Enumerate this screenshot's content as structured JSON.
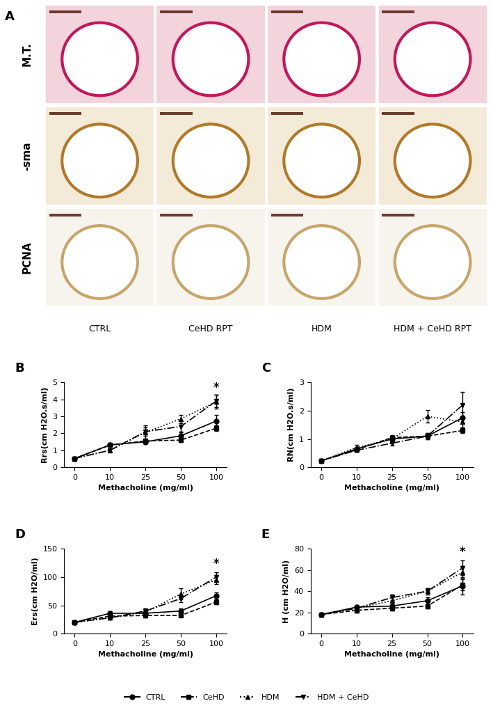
{
  "panel_a": {
    "panel_label": "A",
    "rows": [
      "M.T.",
      "-sma",
      "PCNA"
    ],
    "columns": [
      "CTRL",
      "CeHD RPT",
      "HDM",
      "HDM + CeHD RPT"
    ]
  },
  "chart_data": [
    {
      "type": "line",
      "panel_label": "B",
      "xlabel": "Methacholine (mg/ml)",
      "ylabel": "Rrs(cm H2O.s/ml)",
      "categories": [
        "0",
        "10",
        "25",
        "50",
        "100"
      ],
      "ylim": [
        0,
        5
      ],
      "yticks": [
        0,
        1,
        2,
        3,
        4,
        5
      ],
      "legend": "lower center",
      "annotations": [
        {
          "text": "*",
          "x": "100",
          "y": 4.3
        }
      ],
      "series": [
        {
          "name": "CTRL",
          "color": "#000000",
          "marker": "o",
          "line_style": "solid",
          "values": [
            0.52,
            1.32,
            1.5,
            1.85,
            2.72
          ],
          "errors": [
            0.03,
            0.05,
            0.08,
            0.2,
            0.35
          ]
        },
        {
          "name": "CeHD",
          "color": "#000000",
          "marker": "s",
          "line_style": "dashed",
          "values": [
            0.52,
            1.3,
            1.55,
            1.6,
            2.3
          ],
          "errors": [
            0.03,
            0.05,
            0.08,
            0.1,
            0.15
          ]
        },
        {
          "name": "HDM",
          "color": "#000000",
          "marker": "^",
          "line_style": "dotted",
          "values": [
            0.52,
            1.0,
            2.05,
            2.85,
            3.85
          ],
          "errors": [
            0.03,
            0.08,
            0.4,
            0.25,
            0.4
          ]
        },
        {
          "name": "HDM + CeHD",
          "color": "#000000",
          "marker": "v",
          "line_style": "dashdot",
          "values": [
            0.52,
            1.0,
            2.1,
            2.4,
            3.9
          ],
          "errors": [
            0.03,
            0.08,
            0.25,
            0.3,
            0.35
          ]
        }
      ]
    },
    {
      "type": "line",
      "panel_label": "C",
      "xlabel": "Methacholine (mg/ml)",
      "ylabel": "RN(cm H2O.s/ml)",
      "categories": [
        "0",
        "10",
        "25",
        "50",
        "100"
      ],
      "ylim": [
        0,
        3
      ],
      "yticks": [
        0,
        1,
        2,
        3
      ],
      "legend": "lower center",
      "annotations": [],
      "series": [
        {
          "name": "CTRL",
          "color": "#000000",
          "marker": "o",
          "line_style": "solid",
          "values": [
            0.23,
            0.65,
            1.0,
            1.1,
            1.75
          ],
          "errors": [
            0.02,
            0.08,
            0.1,
            0.12,
            0.2
          ]
        },
        {
          "name": "CeHD",
          "color": "#000000",
          "marker": "s",
          "line_style": "dashed",
          "values": [
            0.23,
            0.62,
            1.05,
            1.1,
            1.3
          ],
          "errors": [
            0.02,
            0.06,
            0.08,
            0.06,
            0.08
          ]
        },
        {
          "name": "HDM",
          "color": "#000000",
          "marker": "^",
          "line_style": "dotted",
          "values": [
            0.23,
            0.7,
            1.0,
            1.8,
            1.6
          ],
          "errors": [
            0.02,
            0.1,
            0.12,
            0.22,
            0.2
          ]
        },
        {
          "name": "HDM + CeHD",
          "color": "#000000",
          "marker": "v",
          "line_style": "dashdot",
          "values": [
            0.23,
            0.6,
            0.85,
            1.1,
            2.2
          ],
          "errors": [
            0.02,
            0.06,
            0.08,
            0.1,
            0.45
          ]
        }
      ]
    },
    {
      "type": "line",
      "panel_label": "D",
      "xlabel": "Methacholine (mg/ml)",
      "ylabel": "Ers(cm H2O/ml)",
      "categories": [
        "0",
        "10",
        "25",
        "50",
        "100"
      ],
      "ylim": [
        0,
        150
      ],
      "yticks": [
        0,
        50,
        100,
        150
      ],
      "legend": "lower center",
      "annotations": [
        {
          "text": "*",
          "x": "100",
          "y": 112
        }
      ],
      "series": [
        {
          "name": "CTRL",
          "color": "#000000",
          "marker": "o",
          "line_style": "solid",
          "values": [
            20,
            36,
            36,
            40,
            67
          ],
          "errors": [
            1,
            3,
            4,
            4,
            6
          ]
        },
        {
          "name": "CeHD",
          "color": "#000000",
          "marker": "s",
          "line_style": "dashed",
          "values": [
            20,
            31,
            32,
            32,
            56
          ],
          "errors": [
            1,
            2,
            3,
            2,
            4
          ]
        },
        {
          "name": "HDM",
          "color": "#000000",
          "marker": "^",
          "line_style": "dotted",
          "values": [
            20,
            28,
            38,
            70,
            95
          ],
          "errors": [
            1,
            3,
            6,
            10,
            8
          ]
        },
        {
          "name": "HDM + CeHD",
          "color": "#000000",
          "marker": "v",
          "line_style": "dashdot",
          "values": [
            20,
            28,
            40,
            62,
            100
          ],
          "errors": [
            1,
            3,
            5,
            6,
            8
          ]
        }
      ]
    },
    {
      "type": "line",
      "panel_label": "E",
      "xlabel": "Methacholine (mg/ml)",
      "ylabel": "H (cm H2O/ml)",
      "categories": [
        "0",
        "10",
        "25",
        "50",
        "100"
      ],
      "ylim": [
        0,
        80
      ],
      "yticks": [
        0,
        20,
        40,
        60,
        80
      ],
      "legend": "lower center",
      "annotations": [
        {
          "text": "*",
          "x": "100",
          "y": 71
        }
      ],
      "series": [
        {
          "name": "CTRL",
          "color": "#000000",
          "marker": "o",
          "line_style": "solid",
          "values": [
            18,
            25,
            26,
            31,
            45
          ],
          "errors": [
            1,
            2,
            2,
            3,
            8
          ]
        },
        {
          "name": "CeHD",
          "color": "#000000",
          "marker": "s",
          "line_style": "dashed",
          "values": [
            18,
            22,
            24,
            26,
            46
          ],
          "errors": [
            1,
            2,
            2,
            2,
            5
          ]
        },
        {
          "name": "HDM",
          "color": "#000000",
          "marker": "^",
          "line_style": "dotted",
          "values": [
            18,
            24,
            31,
            40,
            58
          ],
          "errors": [
            1,
            2,
            5,
            3,
            6
          ]
        },
        {
          "name": "HDM + CeHD",
          "color": "#000000",
          "marker": "v",
          "line_style": "dashdot",
          "values": [
            18,
            24,
            34,
            40,
            62
          ],
          "errors": [
            1,
            2,
            3,
            3,
            7
          ]
        }
      ]
    }
  ]
}
